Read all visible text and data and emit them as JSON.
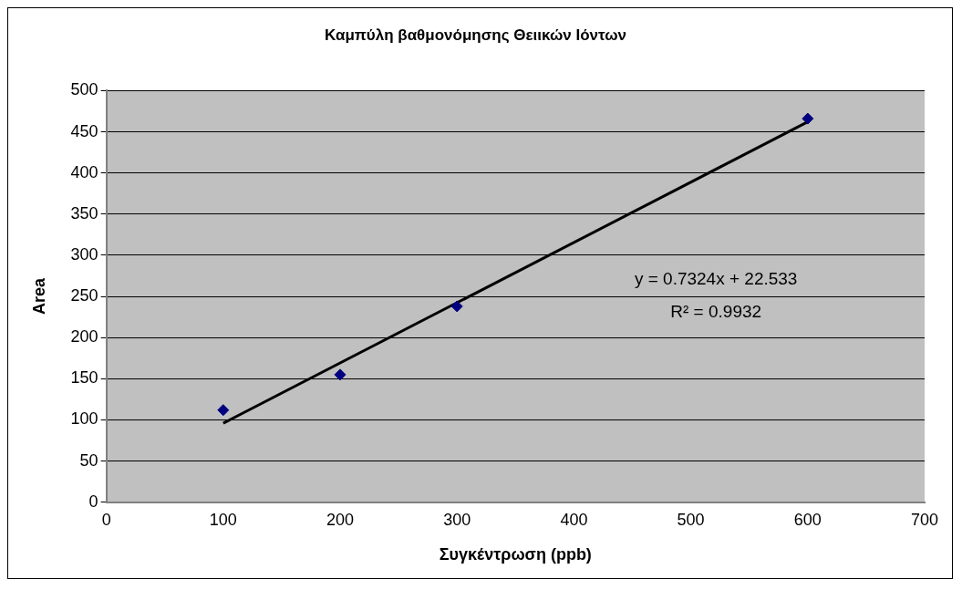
{
  "chart_data": {
    "type": "scatter",
    "title": "Καμπύλη βαθμονόμησης Θειικών Ιόντων",
    "xlabel": "Συγκέντρωση (ppb)",
    "ylabel": "Area",
    "x": [
      100,
      200,
      300,
      600
    ],
    "series": [
      {
        "color": "#000080",
        "values": [
          112,
          155,
          238,
          466
        ],
        "marker": "diamond"
      },
      {
        "type": "line",
        "color": "#000000",
        "x": [
          100,
          600
        ],
        "values": [
          96,
          462
        ],
        "marker": "none",
        "line_style": "solid"
      }
    ],
    "xlim": [
      0,
      700
    ],
    "xticks": [
      0,
      100,
      200,
      300,
      400,
      500,
      600,
      700
    ],
    "ylim": [
      0,
      500
    ],
    "yticks": [
      0,
      50,
      100,
      150,
      200,
      250,
      300,
      350,
      400,
      450,
      500
    ],
    "grid": "y",
    "legend": false,
    "annotations": [
      "y = 0.7324x + 22.533",
      "R² = 0.9932"
    ]
  }
}
